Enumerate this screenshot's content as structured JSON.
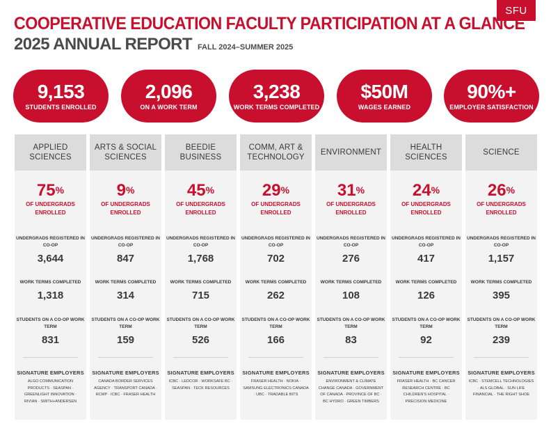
{
  "brand": {
    "logo_text": "SFU",
    "accent": "#c8102e"
  },
  "header": {
    "title": "COOPERATIVE EDUCATION FACULTY PARTICIPATION AT A GLANCE",
    "subtitle": "2025 ANNUAL REPORT",
    "period": "FALL 2024–SUMMER 2025"
  },
  "stats": [
    {
      "value": "9,153",
      "label": "STUDENTS ENROLLED"
    },
    {
      "value": "2,096",
      "label": "ON A WORK TERM"
    },
    {
      "value": "3,238",
      "label": "WORK TERMS COMPLETED"
    },
    {
      "value": "$50M",
      "label": "WAGES EARNED"
    },
    {
      "value": "90%+",
      "label": "EMPLOYER SATISFACTION"
    }
  ],
  "labels": {
    "pct_label": "OF UNDERGRADS ENROLLED",
    "registered_label": "UNDERGRADS REGISTERED IN CO-OP",
    "work_terms_label": "WORK TERMS COMPLETED",
    "on_term_label": "STUDENTS ON A CO-OP WORK TERM",
    "employers_label": "SIGNATURE EMPLOYERS",
    "percent_sign": "%"
  },
  "faculties": [
    {
      "name": "APPLIED SCIENCES",
      "pct": "75",
      "registered": "3,644",
      "work_terms": "1,318",
      "on_term": "831",
      "employers": "ALGO COMMUNICATION PRODUCTS · SEASPAN · GREENLIGHT INNOVATION · RIVIAN · SMITH+ANDERSEN"
    },
    {
      "name": "ARTS & SOCIAL SCIENCES",
      "pct": "9",
      "registered": "847",
      "work_terms": "314",
      "on_term": "159",
      "employers": "CANADA BORDER SERVICES AGENCY · TRANSPORT CANADA · RCMP · ICBC · FRASER HEALTH"
    },
    {
      "name": "BEEDIE BUSINESS",
      "pct": "45",
      "registered": "1,768",
      "work_terms": "715",
      "on_term": "526",
      "employers": "ICBC · LEDCOR · WORKSAFE BC · SEASPAN · TECK RESOURCES"
    },
    {
      "name": "COMM, ART & TECHNOLOGY",
      "pct": "29",
      "registered": "702",
      "work_terms": "262",
      "on_term": "166",
      "employers": "FRASER HEALTH · NOKIA · SAMSUNG ELECTRONICS CANADA · UBC · TRADABLE BITS"
    },
    {
      "name": "ENVIRONMENT",
      "pct": "31",
      "registered": "276",
      "work_terms": "108",
      "on_term": "83",
      "employers": "ENVIRONMENT & CLIMATE CHANGE CANADA · GOVERNMENT OF CANADA · PROVINCE OF BC · BC HYDRO · GREEN TIMBERS"
    },
    {
      "name": "HEALTH SCIENCES",
      "pct": "24",
      "registered": "417",
      "work_terms": "126",
      "on_term": "92",
      "employers": "FRASER HEALTH · BC CANCER RESEARCH CENTRE · BC CHILDREN'S HOSPITAL · PRECISION MEDICINE"
    },
    {
      "name": "SCIENCE",
      "pct": "26",
      "registered": "1,157",
      "work_terms": "395",
      "on_term": "239",
      "employers": "ICBC · STEMCELL TECHNOLOGIES · ALS GLOBAL · SUN LIFE FINANCIAL · THE RIGHT SHOE"
    }
  ]
}
